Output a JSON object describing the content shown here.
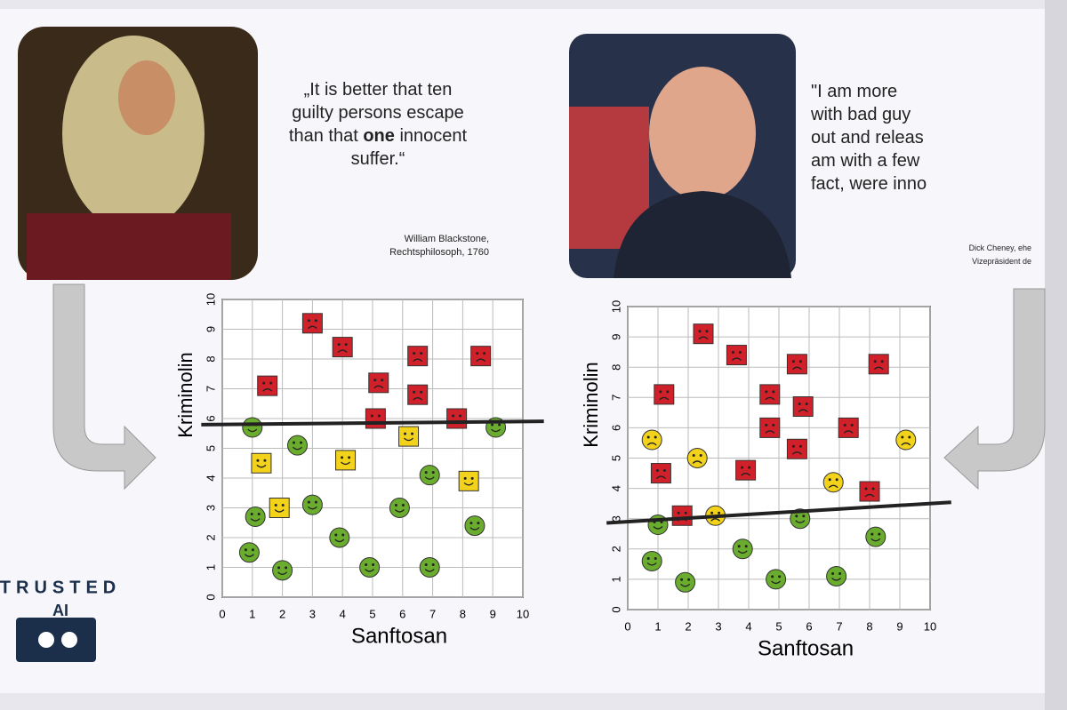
{
  "quotes": [
    {
      "lines": [
        [
          {
            "text": "„It is better that ten",
            "bold": false
          }
        ],
        [
          {
            "text": "guilty persons escape",
            "bold": false
          }
        ],
        [
          {
            "text": "than that ",
            "bold": false
          },
          {
            "text": "one",
            "bold": true
          },
          {
            "text": " innocent",
            "bold": false
          }
        ],
        [
          {
            "text": "suffer.“",
            "bold": false
          }
        ]
      ],
      "author": [
        "William Blackstone,",
        "Rechtsphilosoph, 1760"
      ]
    },
    {
      "lines": [
        [
          {
            "text": "\"I am more",
            "bold": false
          }
        ],
        [
          {
            "text": "with bad guy",
            "bold": false
          }
        ],
        [
          {
            "text": "out and releas",
            "bold": false
          }
        ],
        [
          {
            "text": "am with a few",
            "bold": false
          }
        ],
        [
          {
            "text": "fact, were inno",
            "bold": false
          }
        ]
      ],
      "author": [
        "Dick Cheney, ehe",
        "Vizepräsident de"
      ]
    }
  ],
  "logo": {
    "top": "TRUSTED",
    "middle": "AI"
  },
  "chart_data": [
    {
      "type": "scatter",
      "xlabel": "Sanftosan",
      "ylabel": "Kriminolin",
      "xlim": [
        0,
        10
      ],
      "ylim": [
        0,
        10
      ],
      "xticks": [
        0,
        1,
        2,
        3,
        4,
        5,
        6,
        7,
        8,
        9,
        10
      ],
      "yticks": [
        0,
        1,
        2,
        3,
        4,
        5,
        6,
        7,
        8,
        9,
        10
      ],
      "grid": true,
      "threshold_line": [
        5.8,
        5.9
      ],
      "series": [
        {
          "color": "#d0202a",
          "marker": "square",
          "face": "sad",
          "x": [
            1.5,
            3,
            4,
            5.2,
            6.5,
            6.5,
            5.1,
            7.8,
            8.6
          ],
          "y": [
            7.1,
            9.2,
            8.4,
            7.2,
            8.1,
            6.8,
            6.0,
            6.0,
            8.1
          ]
        },
        {
          "color": "#f2d21b",
          "marker": "square",
          "face": "happy",
          "x": [
            1.3,
            1.9,
            4.1,
            6.2,
            8.2
          ],
          "y": [
            4.5,
            3.0,
            4.6,
            5.4,
            3.9
          ]
        },
        {
          "color": "#6aac2e",
          "marker": "circle",
          "face": "happy",
          "x": [
            1,
            2.5,
            0.9,
            1.1,
            2,
            3,
            3.9,
            4.9,
            5.9,
            6.9,
            6.9,
            8.4,
            9.1
          ],
          "y": [
            5.7,
            5.1,
            1.5,
            2.7,
            0.9,
            3.1,
            2,
            1,
            3.0,
            4.1,
            1,
            2.4,
            5.7
          ]
        }
      ]
    },
    {
      "type": "scatter",
      "xlabel": "Sanftosan",
      "ylabel": "Kriminolin",
      "xlim": [
        0,
        10
      ],
      "ylim": [
        0,
        10
      ],
      "xticks": [
        0,
        1,
        2,
        3,
        4,
        5,
        6,
        7,
        8,
        9,
        10
      ],
      "yticks": [
        0,
        1,
        2,
        3,
        4,
        5,
        6,
        7,
        8,
        9,
        10
      ],
      "grid": true,
      "threshold_line": [
        2.9,
        3.5
      ],
      "series": [
        {
          "color": "#d0202a",
          "marker": "square",
          "face": "sad",
          "x": [
            2.5,
            3.6,
            5.6,
            8.3,
            1.2,
            4.7,
            5.8,
            4.7,
            7.3,
            5.6,
            1.1,
            3.9,
            8.0,
            1.8
          ],
          "y": [
            9.1,
            8.4,
            8.1,
            8.1,
            7.1,
            7.1,
            6.7,
            6.0,
            6.0,
            5.3,
            4.5,
            4.6,
            3.9,
            3.1
          ]
        },
        {
          "color": "#f2d21b",
          "marker": "circle",
          "face": "sad",
          "x": [
            0.8,
            2.3,
            9.2,
            6.8,
            2.9
          ],
          "y": [
            5.6,
            5.0,
            5.6,
            4.2,
            3.1
          ]
        },
        {
          "color": "#6aac2e",
          "marker": "circle",
          "face": "happy",
          "x": [
            1,
            0.8,
            1.9,
            3.8,
            4.9,
            5.7,
            6.9,
            8.2
          ],
          "y": [
            2.8,
            1.6,
            0.9,
            2.0,
            1.0,
            3.0,
            1.1,
            2.4
          ]
        }
      ]
    }
  ]
}
